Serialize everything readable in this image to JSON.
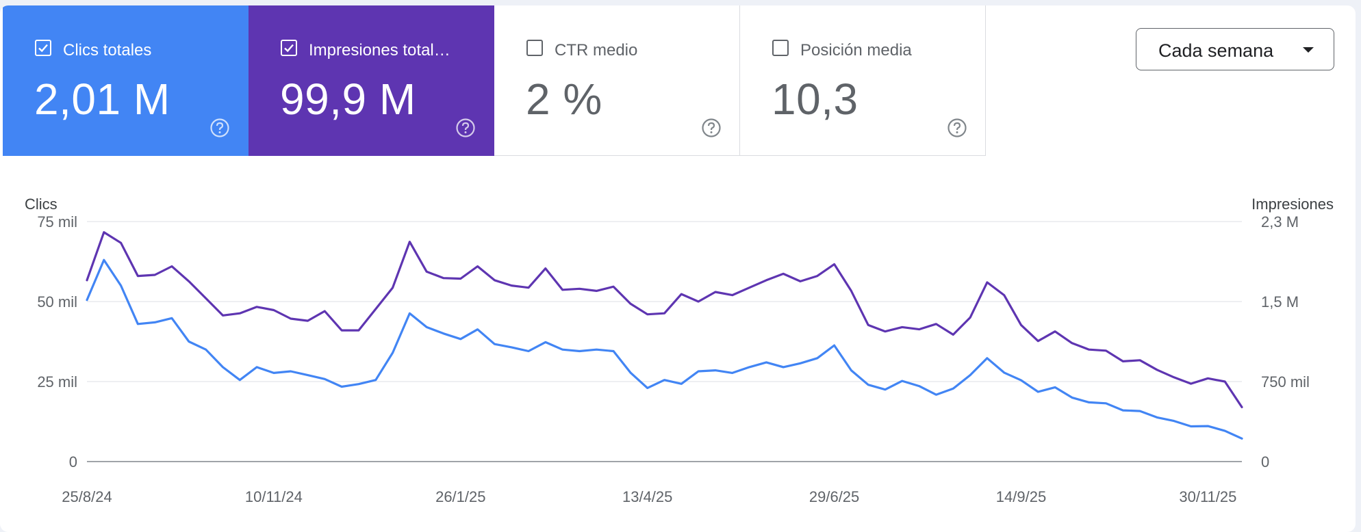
{
  "metrics": [
    {
      "label": "Clics totales",
      "value": "2,01 M",
      "checked": true,
      "color": "#4285f4"
    },
    {
      "label": "Impresiones total…",
      "value": "99,9 M",
      "checked": true,
      "color": "#5e35b1"
    },
    {
      "label": "CTR medio",
      "value": "2 %",
      "checked": false,
      "color": "#ffffff"
    },
    {
      "label": "Posición media",
      "value": "10,3",
      "checked": false,
      "color": "#ffffff"
    }
  ],
  "period_selector": {
    "label": "Cada semana",
    "icon": "caret-down-icon"
  },
  "icons": {
    "help": "help-circle-icon",
    "checkbox": "checkbox-icon"
  },
  "chart_data": {
    "type": "line",
    "left_axis": {
      "title": "Clics",
      "ticks": [
        "0",
        "25 mil",
        "50 mil",
        "75 mil"
      ],
      "tick_values": [
        0,
        25000,
        50000,
        75000
      ],
      "range": [
        0,
        75000
      ]
    },
    "right_axis": {
      "title": "Impresiones",
      "ticks": [
        "0",
        "750 mil",
        "1,5 M",
        "2,3 M"
      ],
      "tick_values": [
        0,
        750000,
        1500000,
        2250000
      ],
      "range": [
        0,
        2250000
      ]
    },
    "x_ticks": [
      {
        "label": "25/8/24",
        "index": 0
      },
      {
        "label": "10/11/24",
        "index": 11
      },
      {
        "label": "26/1/25",
        "index": 22
      },
      {
        "label": "13/4/25",
        "index": 33
      },
      {
        "label": "29/6/25",
        "index": 44
      },
      {
        "label": "14/9/25",
        "index": 55
      },
      {
        "label": "30/11/25",
        "index": 66
      }
    ],
    "grid": true,
    "series": [
      {
        "name": "Clics",
        "axis": "left",
        "color": "#4285f4",
        "values": [
          50500,
          63000,
          55000,
          43000,
          43500,
          44800,
          37500,
          35000,
          29500,
          25500,
          29500,
          27700,
          28200,
          27000,
          25800,
          23400,
          24200,
          25500,
          34000,
          46300,
          42000,
          40000,
          38300,
          41300,
          36700,
          35700,
          34500,
          37300,
          35000,
          34500,
          35000,
          34500,
          27800,
          23000,
          25500,
          24300,
          28200,
          28500,
          27700,
          29500,
          31000,
          29500,
          30700,
          32300,
          36300,
          28500,
          24000,
          22500,
          25200,
          23600,
          20900,
          22800,
          27000,
          32300,
          27800,
          25400,
          21800,
          23200,
          20000,
          18500,
          18200,
          16000,
          15800,
          13800,
          12700,
          11000,
          11100,
          9600,
          7200
        ]
      },
      {
        "name": "Impresiones",
        "axis": "right",
        "color": "#5e35b1",
        "values": [
          1700000,
          2150000,
          2050000,
          1740000,
          1750000,
          1830000,
          1690000,
          1530000,
          1370000,
          1390000,
          1450000,
          1420000,
          1340000,
          1320000,
          1410000,
          1230000,
          1230000,
          1430000,
          1630000,
          2060000,
          1780000,
          1720000,
          1715000,
          1830000,
          1700000,
          1650000,
          1630000,
          1810000,
          1610000,
          1620000,
          1600000,
          1640000,
          1480000,
          1380000,
          1390000,
          1570000,
          1500000,
          1590000,
          1560000,
          1630000,
          1700000,
          1760000,
          1690000,
          1740000,
          1850000,
          1600000,
          1280000,
          1220000,
          1260000,
          1240000,
          1290000,
          1190000,
          1350000,
          1680000,
          1560000,
          1280000,
          1130000,
          1220000,
          1110000,
          1050000,
          1040000,
          940000,
          950000,
          860000,
          790000,
          730000,
          780000,
          750000,
          510000
        ]
      }
    ]
  }
}
